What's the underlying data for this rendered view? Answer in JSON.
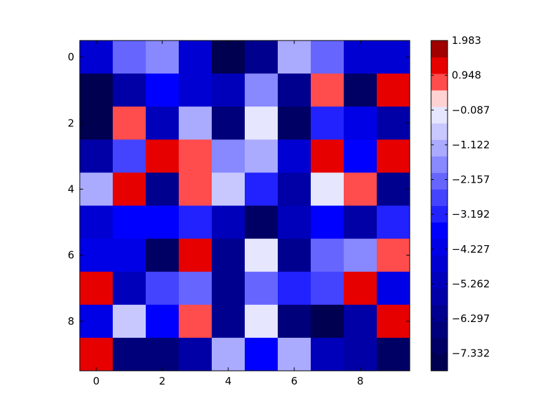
{
  "chart_data": {
    "type": "heatmap",
    "title": "",
    "xlabel": "",
    "ylabel": "",
    "x_ticks": [
      0,
      2,
      4,
      6,
      8
    ],
    "y_ticks": [
      0,
      2,
      4,
      6,
      8
    ],
    "rows": 10,
    "cols": 10,
    "legend": "colorbar-right",
    "grid": false,
    "colorbar": {
      "min": -7.85,
      "max": 1.983,
      "levels": [
        -7.85,
        -7.332,
        -6.815,
        -6.297,
        -5.78,
        -5.262,
        -4.745,
        -4.227,
        -3.71,
        -3.192,
        -2.675,
        -2.157,
        -1.64,
        -1.122,
        -0.605,
        -0.087,
        0.431,
        0.948,
        1.466,
        1.983
      ],
      "tick_labels": [
        "1.983",
        "0.948",
        "−0.087",
        "−1.122",
        "−2.157",
        "−3.192",
        "−4.227",
        "−5.262",
        "−6.297",
        "−7.332"
      ],
      "tick_values": [
        1.983,
        0.948,
        -0.087,
        -1.122,
        -2.157,
        -3.192,
        -4.227,
        -5.262,
        -6.297,
        -7.332
      ],
      "colors": [
        "#000050",
        "#000064",
        "#00007a",
        "#00008f",
        "#0000a6",
        "#0000bb",
        "#0000d2",
        "#0000e6",
        "#0000fe",
        "#2222ff",
        "#4444ff",
        "#6666ff",
        "#8888ff",
        "#aaaaff",
        "#c8c8ff",
        "#e6e6ff",
        "#ffd2d2",
        "#ff4c4c",
        "#e60000",
        "#a00000"
      ]
    },
    "values": [
      [
        -4.5,
        -1.9,
        -1.4,
        -4.5,
        -7.6,
        -6.1,
        -0.9,
        -1.9,
        -4.5,
        -4.5
      ],
      [
        -7.6,
        -5.5,
        -3.5,
        -4.5,
        -5.0,
        -1.4,
        -6.1,
        1.2,
        -7.1,
        1.7
      ],
      [
        -7.6,
        1.2,
        -5.0,
        -0.9,
        -6.6,
        0.2,
        -7.1,
        -2.9,
        -4.0,
        -5.5
      ],
      [
        -5.5,
        -2.4,
        1.7,
        1.2,
        -1.4,
        -0.9,
        -4.5,
        1.7,
        -3.5,
        1.7
      ],
      [
        -0.9,
        1.9,
        -6.1,
        1.2,
        -0.4,
        -2.9,
        -5.5,
        0.0,
        1.2,
        -6.1
      ],
      [
        -4.5,
        -3.5,
        -3.5,
        -2.9,
        -5.0,
        -7.1,
        -5.0,
        -3.5,
        -5.5,
        -2.9
      ],
      [
        -4.0,
        -4.0,
        -7.1,
        1.7,
        -6.1,
        0.2,
        -6.1,
        -1.9,
        -1.4,
        1.2
      ],
      [
        1.7,
        -5.0,
        -2.4,
        -1.9,
        -6.1,
        -1.9,
        -2.9,
        -2.4,
        1.9,
        -4.0
      ],
      [
        -4.0,
        -0.4,
        -3.5,
        1.2,
        -6.1,
        0.2,
        -6.6,
        -7.6,
        -5.5,
        1.9
      ],
      [
        1.7,
        -6.6,
        -6.6,
        -5.5,
        -0.9,
        -3.5,
        -0.9,
        -5.0,
        -5.5,
        -7.1
      ]
    ]
  }
}
